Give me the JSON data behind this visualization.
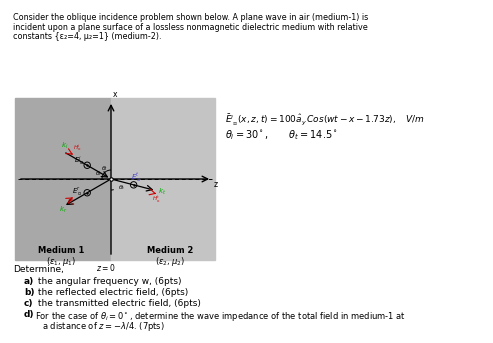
{
  "title_lines": [
    "Consider the oblique incidence problem shown below. A plane wave in air (medium-1) is",
    "incident upon a plane surface of a lossless nonmagnetic dielectric medium with relative",
    "constants {ε₂=4, μ₂=1} (medium-2)."
  ],
  "eq1": "$\\bar{E}^i_\\perp(x,z,t) = 100\\hat{a}_y\\,Cos(wt-x-1.73z), \\quad V/m$",
  "eq2": "$\\theta_i = 30^\\circ, \\qquad \\theta_t = 14.5^\\circ$",
  "determine": "Determine,",
  "items_bold": [
    "a)",
    "b)",
    "c)",
    "d)"
  ],
  "items_text": [
    " the angular frequency w, (6pts)",
    " the reflected electric field, (6pts)",
    " the transmitted electric field, (6pts)",
    " For the case of $\\theta_i =0^\\circ$, determine the wave impedance of the total field in medium-1 at"
  ],
  "item_d_line2": "    a distance of $z=-\\lambda/4$. (7pts)",
  "diag_bg_left": "#aaaaaa",
  "diag_bg_right": "#c8c8c8",
  "white_bg": "#ffffff",
  "green_color": "#00aa00",
  "red_color": "#cc0000",
  "blue_color": "#4444cc"
}
